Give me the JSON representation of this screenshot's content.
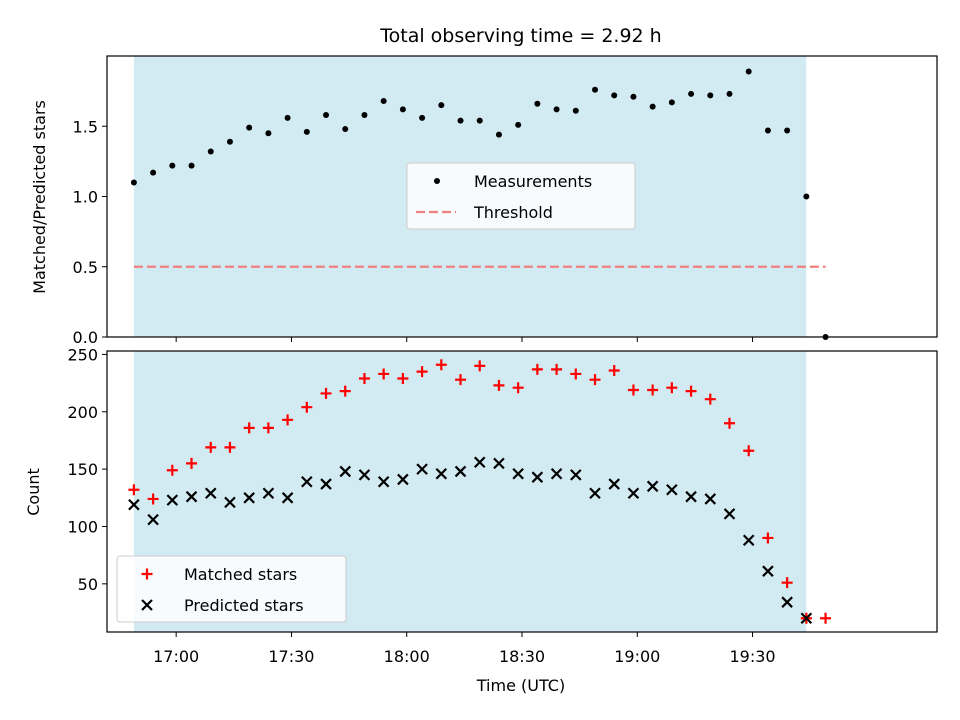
{
  "title": "Total observing time = 2.92 h",
  "chart_data": [
    {
      "type": "scatter",
      "panel": "top",
      "title": "Total observing time = 2.92 h",
      "xlabel": "",
      "ylabel": "Matched/Predicted stars",
      "xlim": [
        "16:42",
        "20:18"
      ],
      "ylim": [
        0,
        2.0
      ],
      "yticks": [
        "0.0",
        "0.5",
        "1.0",
        "1.5"
      ],
      "legend_position": "center",
      "shaded_interval": {
        "start": "16:49",
        "end": "19:44",
        "color": "#add8e6"
      },
      "series": [
        {
          "name": "Measurements",
          "marker": "dot",
          "color": "#000000",
          "x": [
            "16:49",
            "16:54",
            "16:59",
            "17:04",
            "17:09",
            "17:14",
            "17:19",
            "17:24",
            "17:29",
            "17:34",
            "17:39",
            "17:44",
            "17:49",
            "17:54",
            "17:59",
            "18:04",
            "18:09",
            "18:14",
            "18:19",
            "18:24",
            "18:29",
            "18:34",
            "18:39",
            "18:44",
            "18:49",
            "18:54",
            "18:59",
            "19:04",
            "19:09",
            "19:14",
            "19:19",
            "19:24",
            "19:29",
            "19:34",
            "19:39",
            "19:44",
            "19:49"
          ],
          "y": [
            1.1,
            1.17,
            1.22,
            1.22,
            1.32,
            1.39,
            1.49,
            1.45,
            1.56,
            1.46,
            1.58,
            1.48,
            1.58,
            1.68,
            1.62,
            1.56,
            1.65,
            1.54,
            1.54,
            1.44,
            1.51,
            1.66,
            1.62,
            1.61,
            1.76,
            1.72,
            1.71,
            1.64,
            1.67,
            1.73,
            1.72,
            1.73,
            1.89,
            1.47,
            1.47,
            1.0,
            0.0
          ]
        },
        {
          "name": "Threshold",
          "style": "dashed",
          "color": "#f08080",
          "x": [
            "16:49",
            "19:49"
          ],
          "y": [
            0.5,
            0.5
          ]
        }
      ]
    },
    {
      "type": "scatter",
      "panel": "bottom",
      "xlabel": "Time (UTC)",
      "ylabel": "Count",
      "xlim": [
        "16:42",
        "20:18"
      ],
      "ylim": [
        8,
        253
      ],
      "xticks": [
        "17:00",
        "17:30",
        "18:00",
        "18:30",
        "19:00",
        "19:30"
      ],
      "yticks": [
        "50",
        "100",
        "150",
        "200",
        "250"
      ],
      "legend_position": "lower left",
      "shaded_interval": {
        "start": "16:49",
        "end": "19:44",
        "color": "#add8e6"
      },
      "series": [
        {
          "name": "Matched stars",
          "marker": "plus",
          "color": "#ff0000",
          "x": [
            "16:49",
            "16:54",
            "16:59",
            "17:04",
            "17:09",
            "17:14",
            "17:19",
            "17:24",
            "17:29",
            "17:34",
            "17:39",
            "17:44",
            "17:49",
            "17:54",
            "17:59",
            "18:04",
            "18:09",
            "18:14",
            "18:19",
            "18:24",
            "18:29",
            "18:34",
            "18:39",
            "18:44",
            "18:49",
            "18:54",
            "18:59",
            "19:04",
            "19:09",
            "19:14",
            "19:19",
            "19:24",
            "19:29",
            "19:34",
            "19:39",
            "19:44",
            "19:49"
          ],
          "y": [
            132,
            124,
            149,
            155,
            169,
            169,
            186,
            186,
            193,
            204,
            216,
            218,
            229,
            233,
            229,
            235,
            241,
            228,
            240,
            223,
            221,
            237,
            237,
            233,
            228,
            236,
            219,
            219,
            221,
            218,
            211,
            190,
            166,
            90,
            51,
            20,
            20
          ]
        },
        {
          "name": "Predicted stars",
          "marker": "x",
          "color": "#000000",
          "x": [
            "16:49",
            "16:54",
            "16:59",
            "17:04",
            "17:09",
            "17:14",
            "17:19",
            "17:24",
            "17:29",
            "17:34",
            "17:39",
            "17:44",
            "17:49",
            "17:54",
            "17:59",
            "18:04",
            "18:09",
            "18:14",
            "18:19",
            "18:24",
            "18:29",
            "18:34",
            "18:39",
            "18:44",
            "18:49",
            "18:54",
            "18:59",
            "19:04",
            "19:09",
            "19:14",
            "19:19",
            "19:24",
            "19:29",
            "19:34",
            "19:39",
            "19:44"
          ],
          "y": [
            119,
            106,
            123,
            126,
            129,
            121,
            125,
            129,
            125,
            139,
            137,
            148,
            145,
            139,
            141,
            150,
            146,
            148,
            156,
            155,
            146,
            143,
            146,
            145,
            129,
            137,
            129,
            135,
            132,
            126,
            124,
            111,
            88,
            61,
            34,
            20
          ]
        }
      ]
    }
  ]
}
